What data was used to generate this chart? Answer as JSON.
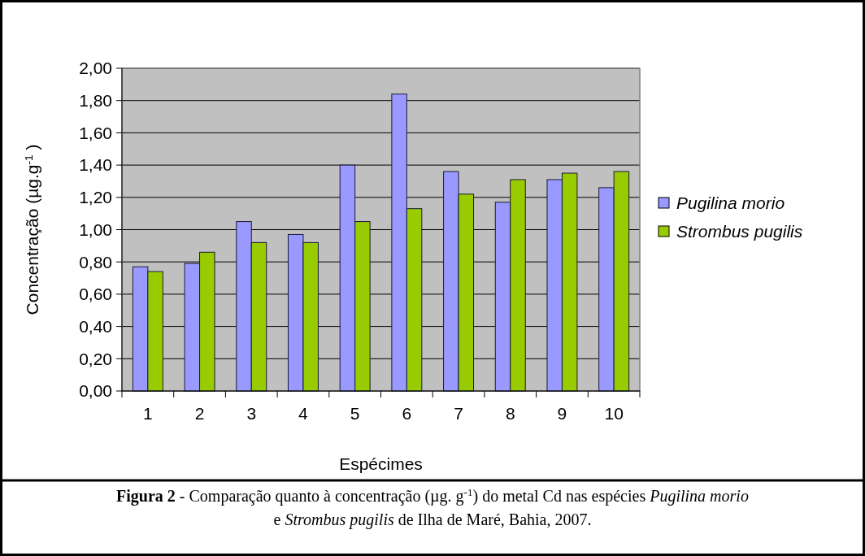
{
  "chart_data": {
    "type": "bar",
    "xlabel": "Espécimes",
    "ylabel": "Concentração (µg.g$^{-1}$ )",
    "categories": [
      "1",
      "2",
      "3",
      "4",
      "5",
      "6",
      "7",
      "8",
      "9",
      "10"
    ],
    "series": [
      {
        "name": "Pugilina morio",
        "color": "#9999ff",
        "values": [
          0.77,
          0.79,
          1.05,
          0.97,
          1.4,
          1.84,
          1.36,
          1.17,
          1.31,
          1.26
        ]
      },
      {
        "name": "Strombus pugilis",
        "color": "#99cc00",
        "values": [
          0.74,
          0.86,
          0.92,
          0.92,
          1.05,
          1.13,
          1.22,
          1.31,
          1.35,
          1.36
        ]
      }
    ],
    "ylim": [
      0,
      2
    ],
    "yticks": [
      {
        "value": 0,
        "label": "0,00"
      },
      {
        "value": 0.2,
        "label": "0,20"
      },
      {
        "value": 0.4,
        "label": "0,40"
      },
      {
        "value": 0.6,
        "label": "0,60"
      },
      {
        "value": 0.8,
        "label": "0,80"
      },
      {
        "value": 1,
        "label": "1,00"
      },
      {
        "value": 1.2,
        "label": "1,20"
      },
      {
        "value": 1.4,
        "label": "1,40"
      },
      {
        "value": 1.6,
        "label": "1,60"
      },
      {
        "value": 1.8,
        "label": "1,80"
      },
      {
        "value": 2,
        "label": "2,00"
      }
    ],
    "grid": "y",
    "legend": "right",
    "annotations": [
      "Figura 2 - Comparação quanto à concentração (µg. g$^{-1}$) do metal Cd nas espécies Pugilina morio e Strombus pugilis de Ilha de Maré, Bahia, 2007."
    ]
  }
}
